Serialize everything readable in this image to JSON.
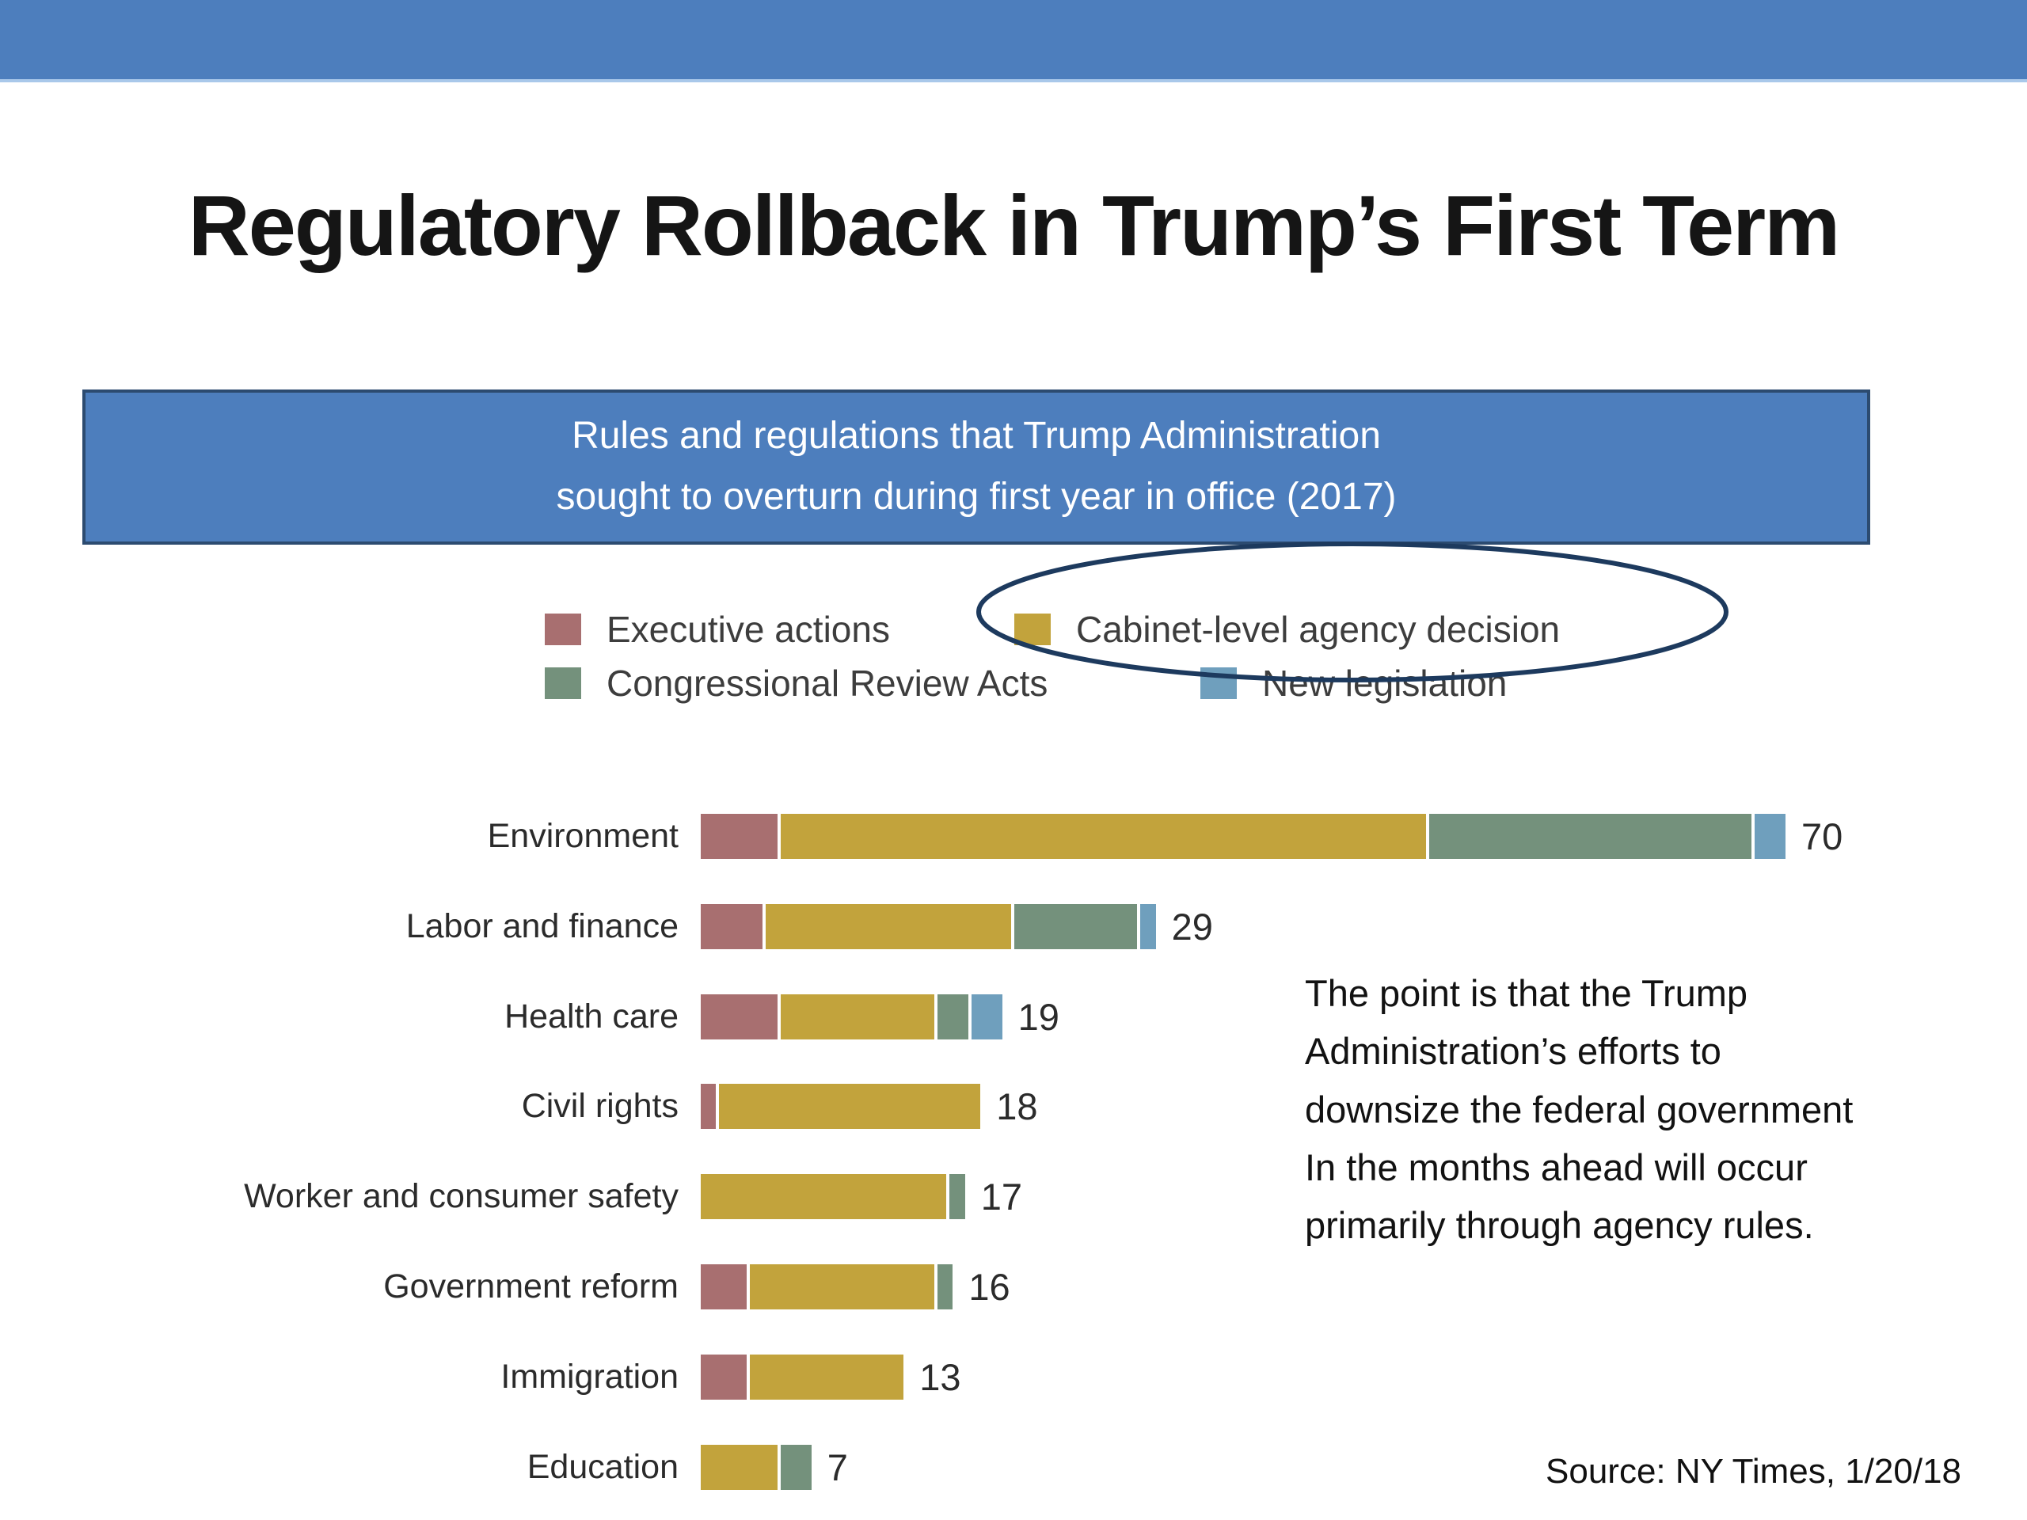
{
  "slide": {
    "title": "Regulatory Rollback in Trump’s First Term",
    "subtitle_line1": "Rules and regulations that Trump Administration",
    "subtitle_line2": "sought to overturn during first year in office (2017)",
    "annotation": "The point is that the Trump\nAdministration’s efforts to\ndownsize the federal government\nIn the months ahead will occur\nprimarily through agency rules.",
    "source": "Source: NY Times, 1/20/18"
  },
  "colors": {
    "banner_blue": "#4d7ebd",
    "banner_underline": "#a9c8ea",
    "box_border": "#2c4b70",
    "executive": "#a86f70",
    "cabinet": "#c2a33c",
    "congressional": "#74917c",
    "legislation": "#6f9fbd",
    "ellipse": "#1d3a5e"
  },
  "legend": [
    {
      "label": "Executive actions",
      "series": "executive"
    },
    {
      "label": "Cabinet-level agency decision",
      "series": "cabinet",
      "highlighted": true
    },
    {
      "label": "Congressional Review Acts",
      "series": "congressional"
    },
    {
      "label": "New legislation",
      "series": "legislation"
    }
  ],
  "chart_data": {
    "type": "bar",
    "orientation": "horizontal",
    "stacked": true,
    "legend_position": "top",
    "axis_shown": false,
    "value_labels_shown": true,
    "categories": [
      "Environment",
      "Labor and finance",
      "Health care",
      "Civil rights",
      "Worker and consumer safety",
      "Government reform",
      "Immigration",
      "Education"
    ],
    "totals": [
      70,
      29,
      19,
      18,
      17,
      16,
      13,
      7
    ],
    "series": [
      {
        "name": "Executive actions",
        "color_key": "executive",
        "values": [
          5,
          4,
          5,
          1,
          0,
          3,
          3,
          0
        ]
      },
      {
        "name": "Cabinet-level agency decision",
        "color_key": "cabinet",
        "values": [
          42,
          16,
          10,
          17,
          16,
          12,
          10,
          5
        ]
      },
      {
        "name": "Congressional Review Acts",
        "color_key": "congressional",
        "values": [
          21,
          8,
          2,
          0,
          1,
          1,
          0,
          2
        ]
      },
      {
        "name": "New legislation",
        "color_key": "legislation",
        "values": [
          2,
          1,
          2,
          0,
          0,
          0,
          0,
          0
        ]
      }
    ]
  }
}
